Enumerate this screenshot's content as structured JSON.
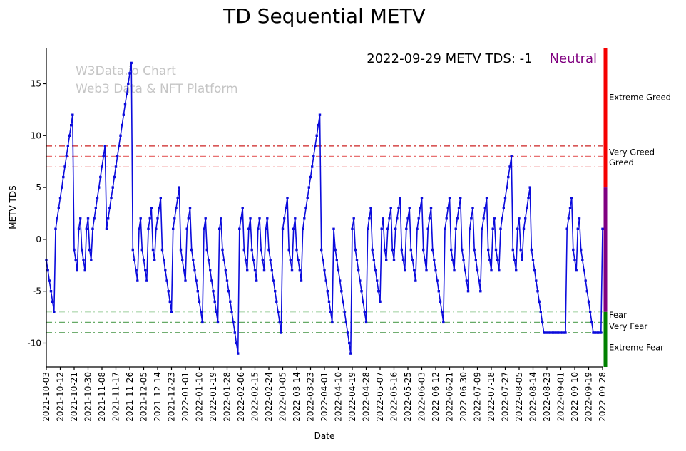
{
  "title": "TD Sequential METV",
  "watermark": {
    "line1": "W3Data.io Chart",
    "line2": "Web3 Data & NFT Platform",
    "color": "#c5c5c5"
  },
  "annotation": {
    "text": "2022-09-29 METV TDS: -1",
    "status": "Neutral",
    "status_color": "#800080"
  },
  "chart_data": {
    "type": "line",
    "title": "TD Sequential METV",
    "xlabel": "Date",
    "ylabel": "METV TDS",
    "legend": "none",
    "grid": false,
    "line_color": "#0b0bdc",
    "marker": "square",
    "ylim": [
      -12.3,
      18.4
    ],
    "y_ticks": [
      -10,
      -5,
      0,
      5,
      10,
      15
    ],
    "x_tick_labels": [
      "2021-10-03",
      "2021-10-12",
      "2021-10-21",
      "2021-10-30",
      "2021-11-08",
      "2021-11-17",
      "2021-11-26",
      "2021-12-05",
      "2021-12-14",
      "2021-12-23",
      "2022-01-01",
      "2022-01-10",
      "2022-01-19",
      "2022-01-28",
      "2022-02-06",
      "2022-02-15",
      "2022-02-24",
      "2022-03-05",
      "2022-03-14",
      "2022-03-23",
      "2022-04-01",
      "2022-04-10",
      "2022-04-19",
      "2022-04-28",
      "2022-05-07",
      "2022-05-16",
      "2022-05-25",
      "2022-06-03",
      "2022-06-12",
      "2022-06-21",
      "2022-06-30",
      "2022-07-09",
      "2022-07-18",
      "2022-07-27",
      "2022-08-05",
      "2022-08-14",
      "2022-08-23",
      "2022-09-01",
      "2022-09-10",
      "2022-09-19",
      "2022-09-28"
    ],
    "x_start": "2021-10-03",
    "x_frequency_days": 1,
    "values": [
      -2,
      -3,
      -4,
      -5,
      -6,
      -7,
      1,
      2,
      3,
      4,
      5,
      6,
      7,
      8,
      9,
      10,
      11,
      12,
      -1,
      -2,
      -3,
      1,
      2,
      -1,
      -2,
      -3,
      1,
      2,
      -1,
      -2,
      1,
      2,
      3,
      4,
      5,
      6,
      7,
      8,
      9,
      1,
      2,
      3,
      4,
      5,
      6,
      7,
      8,
      9,
      10,
      11,
      12,
      13,
      14,
      15,
      16,
      17,
      -1,
      -2,
      -3,
      -4,
      1,
      2,
      -1,
      -2,
      -3,
      -4,
      1,
      2,
      3,
      -1,
      -2,
      1,
      2,
      3,
      4,
      -1,
      -2,
      -3,
      -4,
      -5,
      -6,
      -7,
      1,
      2,
      3,
      4,
      5,
      -1,
      -2,
      -3,
      -4,
      1,
      2,
      3,
      -1,
      -2,
      -3,
      -4,
      -5,
      -6,
      -7,
      -8,
      1,
      2,
      -1,
      -2,
      -3,
      -4,
      -5,
      -6,
      -7,
      -8,
      1,
      2,
      -1,
      -2,
      -3,
      -4,
      -5,
      -6,
      -7,
      -8,
      -9,
      -10,
      -11,
      1,
      2,
      3,
      -1,
      -2,
      -3,
      1,
      2,
      -1,
      -2,
      -3,
      -4,
      1,
      2,
      -1,
      -2,
      -3,
      1,
      2,
      -1,
      -2,
      -3,
      -4,
      -5,
      -6,
      -7,
      -8,
      -9,
      1,
      2,
      3,
      4,
      -1,
      -2,
      -3,
      1,
      2,
      -1,
      -2,
      -3,
      -4,
      1,
      2,
      3,
      4,
      5,
      6,
      7,
      8,
      9,
      10,
      11,
      12,
      -1,
      -2,
      -3,
      -4,
      -5,
      -6,
      -7,
      -8,
      1,
      -1,
      -2,
      -3,
      -4,
      -5,
      -6,
      -7,
      -8,
      -9,
      -10,
      -11,
      1,
      2,
      -1,
      -2,
      -3,
      -4,
      -5,
      -6,
      -7,
      -8,
      1,
      2,
      3,
      -1,
      -2,
      -3,
      -4,
      -5,
      -6,
      1,
      2,
      -1,
      -2,
      1,
      2,
      3,
      -1,
      -2,
      1,
      2,
      3,
      4,
      -1,
      -2,
      -3,
      1,
      2,
      3,
      -1,
      -2,
      -3,
      -4,
      1,
      2,
      3,
      4,
      -1,
      -2,
      -3,
      1,
      2,
      3,
      -1,
      -2,
      -3,
      -4,
      -5,
      -6,
      -7,
      -8,
      1,
      2,
      3,
      4,
      -1,
      -2,
      -3,
      1,
      2,
      3,
      4,
      -1,
      -2,
      -3,
      -4,
      -5,
      1,
      2,
      3,
      -1,
      -2,
      -3,
      -4,
      -5,
      1,
      2,
      3,
      4,
      -1,
      -2,
      -3,
      1,
      2,
      -1,
      -2,
      -3,
      1,
      2,
      3,
      4,
      5,
      6,
      7,
      8,
      -1,
      -2,
      -3,
      1,
      2,
      -1,
      -2,
      1,
      2,
      3,
      4,
      5,
      -1,
      -2,
      -3,
      -4,
      -5,
      -6,
      -7,
      -8,
      -9,
      -9,
      -9,
      -9,
      -9,
      -9,
      -9,
      -9,
      -9,
      -9,
      -9,
      -9,
      -9,
      -9,
      -9,
      1,
      2,
      3,
      4,
      -1,
      -2,
      -3,
      1,
      2,
      -1,
      -2,
      -3,
      -4,
      -5,
      -6,
      -7,
      -8,
      -9,
      -9,
      -9,
      -9,
      -9,
      -9,
      1
    ],
    "thresholds": [
      {
        "value": 9,
        "color": "#cc2222"
      },
      {
        "value": 8,
        "color": "#e87070"
      },
      {
        "value": 7,
        "color": "#f5b8b8"
      },
      {
        "value": -7,
        "color": "#b8dcb8"
      },
      {
        "value": -8,
        "color": "#66aa66"
      },
      {
        "value": -9,
        "color": "#1e7d1e"
      }
    ],
    "zone_labels": [
      {
        "text": "Extreme Greed",
        "color": "#f50000",
        "at": 13.7
      },
      {
        "text": "Very Greed",
        "color": "#e04b4b",
        "at": 8.4
      },
      {
        "text": "Greed",
        "color": "#f5a0a0",
        "at": 7.4
      },
      {
        "text": "Fear",
        "color": "#a8d3a8",
        "at": -7.3
      },
      {
        "text": "Very Fear",
        "color": "#4f9f4f",
        "at": -8.4
      },
      {
        "text": "Extreme Fear",
        "color": "#008000",
        "at": -10.4
      }
    ],
    "side_bar": {
      "segments": [
        {
          "from_value": 18.4,
          "to_value": 5,
          "color": "#f50000"
        },
        {
          "from_value": 5,
          "to_value": -7,
          "color": "#800080"
        },
        {
          "from_value": -7,
          "to_value": -12.3,
          "color": "#008000"
        }
      ]
    }
  }
}
